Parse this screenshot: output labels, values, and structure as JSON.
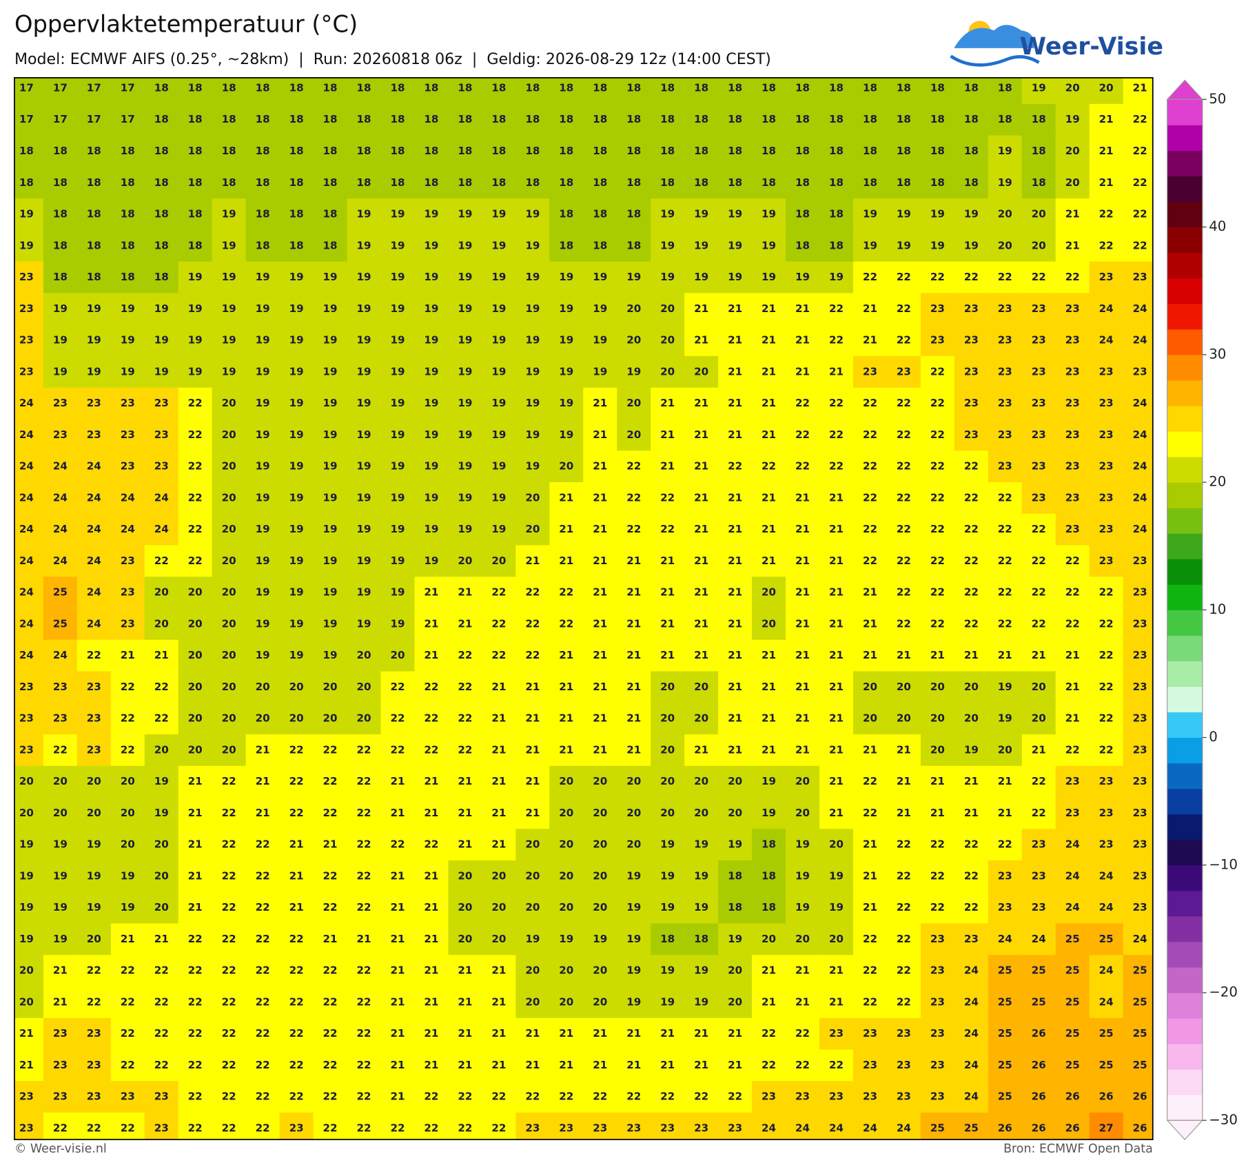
{
  "map": {
    "title": "Oppervlaktetemperatuur (°C)",
    "subtitle": "Model: ECMWF AIFS (0.25°, ~28km)  |  Run: 20260818 06z  |  Geldig: 2026-08-29 12z (14:00 CEST)",
    "logo": "Weer-Visie",
    "footer_left": "© Weer-visie.nl",
    "footer_right": "Bron: ECMWF Open Data",
    "values": [
      [
        17,
        17,
        17,
        17,
        18,
        18,
        18,
        18,
        18,
        18,
        18,
        18,
        18,
        18,
        18,
        18,
        18,
        18,
        18,
        18,
        18,
        18,
        18,
        18,
        18,
        18,
        18,
        18,
        18,
        18,
        19,
        20,
        20,
        21
      ],
      [
        17,
        17,
        17,
        17,
        18,
        18,
        18,
        18,
        18,
        18,
        18,
        18,
        18,
        18,
        18,
        18,
        18,
        18,
        18,
        18,
        18,
        18,
        18,
        18,
        18,
        18,
        18,
        18,
        18,
        18,
        18,
        19,
        21,
        22
      ],
      [
        18,
        18,
        18,
        18,
        18,
        18,
        18,
        18,
        18,
        18,
        18,
        18,
        18,
        18,
        18,
        18,
        18,
        18,
        18,
        18,
        18,
        18,
        18,
        18,
        18,
        18,
        18,
        18,
        18,
        19,
        18,
        20,
        21,
        22
      ],
      [
        18,
        18,
        18,
        18,
        18,
        18,
        18,
        18,
        18,
        18,
        18,
        18,
        18,
        18,
        18,
        18,
        18,
        18,
        18,
        18,
        18,
        18,
        18,
        18,
        18,
        18,
        18,
        18,
        18,
        19,
        18,
        20,
        21,
        22
      ],
      [
        19,
        18,
        18,
        18,
        18,
        18,
        19,
        18,
        18,
        18,
        19,
        19,
        19,
        19,
        19,
        19,
        18,
        18,
        18,
        19,
        19,
        19,
        19,
        18,
        18,
        19,
        19,
        19,
        19,
        20,
        20,
        21,
        22,
        22
      ],
      [
        19,
        18,
        18,
        18,
        18,
        18,
        19,
        18,
        18,
        18,
        19,
        19,
        19,
        19,
        19,
        19,
        18,
        18,
        18,
        19,
        19,
        19,
        19,
        18,
        18,
        19,
        19,
        19,
        19,
        20,
        20,
        21,
        22,
        22
      ],
      [
        23,
        18,
        18,
        18,
        18,
        19,
        19,
        19,
        19,
        19,
        19,
        19,
        19,
        19,
        19,
        19,
        19,
        19,
        19,
        19,
        19,
        19,
        19,
        19,
        19,
        22,
        22,
        22,
        22,
        22,
        22,
        22,
        23,
        23
      ],
      [
        23,
        19,
        19,
        19,
        19,
        19,
        19,
        19,
        19,
        19,
        19,
        19,
        19,
        19,
        19,
        19,
        19,
        19,
        20,
        20,
        21,
        21,
        21,
        21,
        22,
        21,
        22,
        23,
        23,
        23,
        23,
        23,
        24,
        24
      ],
      [
        23,
        19,
        19,
        19,
        19,
        19,
        19,
        19,
        19,
        19,
        19,
        19,
        19,
        19,
        19,
        19,
        19,
        19,
        20,
        20,
        21,
        21,
        21,
        21,
        22,
        21,
        22,
        23,
        23,
        23,
        23,
        23,
        24,
        24
      ],
      [
        23,
        19,
        19,
        19,
        19,
        19,
        19,
        19,
        19,
        19,
        19,
        19,
        19,
        19,
        19,
        19,
        19,
        19,
        19,
        20,
        20,
        21,
        21,
        21,
        21,
        23,
        23,
        22,
        23,
        23,
        23,
        23,
        23,
        23
      ],
      [
        24,
        23,
        23,
        23,
        23,
        22,
        20,
        19,
        19,
        19,
        19,
        19,
        19,
        19,
        19,
        19,
        19,
        21,
        20,
        21,
        21,
        21,
        21,
        22,
        22,
        22,
        22,
        22,
        23,
        23,
        23,
        23,
        23,
        24
      ],
      [
        24,
        23,
        23,
        23,
        23,
        22,
        20,
        19,
        19,
        19,
        19,
        19,
        19,
        19,
        19,
        19,
        19,
        21,
        20,
        21,
        21,
        21,
        21,
        22,
        22,
        22,
        22,
        22,
        23,
        23,
        23,
        23,
        23,
        24
      ],
      [
        24,
        24,
        24,
        23,
        23,
        22,
        20,
        19,
        19,
        19,
        19,
        19,
        19,
        19,
        19,
        19,
        20,
        21,
        22,
        21,
        21,
        22,
        22,
        22,
        22,
        22,
        22,
        22,
        22,
        23,
        23,
        23,
        23,
        24
      ],
      [
        24,
        24,
        24,
        24,
        24,
        22,
        20,
        19,
        19,
        19,
        19,
        19,
        19,
        19,
        19,
        20,
        21,
        21,
        22,
        22,
        21,
        21,
        21,
        21,
        21,
        22,
        22,
        22,
        22,
        22,
        23,
        23,
        23,
        24
      ],
      [
        24,
        24,
        24,
        24,
        24,
        22,
        20,
        19,
        19,
        19,
        19,
        19,
        19,
        19,
        19,
        20,
        21,
        21,
        22,
        22,
        21,
        21,
        21,
        21,
        21,
        22,
        22,
        22,
        22,
        22,
        22,
        23,
        23,
        24
      ],
      [
        24,
        24,
        24,
        23,
        22,
        22,
        20,
        19,
        19,
        19,
        19,
        19,
        19,
        20,
        20,
        21,
        21,
        21,
        21,
        21,
        21,
        21,
        21,
        21,
        21,
        22,
        22,
        22,
        22,
        22,
        22,
        22,
        23,
        23
      ],
      [
        24,
        25,
        24,
        23,
        20,
        20,
        20,
        19,
        19,
        19,
        19,
        19,
        21,
        21,
        22,
        22,
        22,
        21,
        21,
        21,
        21,
        21,
        20,
        21,
        21,
        21,
        22,
        22,
        22,
        22,
        22,
        22,
        22,
        23
      ],
      [
        24,
        25,
        24,
        23,
        20,
        20,
        20,
        19,
        19,
        19,
        19,
        19,
        21,
        21,
        22,
        22,
        22,
        21,
        21,
        21,
        21,
        21,
        20,
        21,
        21,
        21,
        22,
        22,
        22,
        22,
        22,
        22,
        22,
        23
      ],
      [
        24,
        24,
        22,
        21,
        21,
        20,
        20,
        19,
        19,
        19,
        20,
        20,
        21,
        22,
        22,
        22,
        21,
        21,
        21,
        21,
        21,
        21,
        21,
        21,
        21,
        21,
        21,
        21,
        21,
        21,
        21,
        21,
        22,
        23
      ],
      [
        23,
        23,
        23,
        22,
        22,
        20,
        20,
        20,
        20,
        20,
        20,
        22,
        22,
        22,
        21,
        21,
        21,
        21,
        21,
        20,
        20,
        21,
        21,
        21,
        21,
        20,
        20,
        20,
        20,
        19,
        20,
        21,
        22,
        23
      ],
      [
        23,
        23,
        23,
        22,
        22,
        20,
        20,
        20,
        20,
        20,
        20,
        22,
        22,
        22,
        21,
        21,
        21,
        21,
        21,
        20,
        20,
        21,
        21,
        21,
        21,
        20,
        20,
        20,
        20,
        19,
        20,
        21,
        22,
        23
      ],
      [
        23,
        22,
        23,
        22,
        20,
        20,
        20,
        21,
        22,
        22,
        22,
        22,
        22,
        22,
        21,
        21,
        21,
        21,
        21,
        20,
        21,
        21,
        21,
        21,
        21,
        21,
        21,
        20,
        19,
        20,
        21,
        22,
        22,
        23
      ],
      [
        20,
        20,
        20,
        20,
        19,
        21,
        22,
        21,
        22,
        22,
        22,
        21,
        21,
        21,
        21,
        21,
        20,
        20,
        20,
        20,
        20,
        20,
        19,
        20,
        21,
        22,
        21,
        21,
        21,
        21,
        22,
        23,
        23,
        23
      ],
      [
        20,
        20,
        20,
        20,
        19,
        21,
        22,
        21,
        22,
        22,
        22,
        21,
        21,
        21,
        21,
        21,
        20,
        20,
        20,
        20,
        20,
        20,
        19,
        20,
        21,
        22,
        21,
        21,
        21,
        21,
        22,
        23,
        23,
        23
      ],
      [
        19,
        19,
        19,
        20,
        20,
        21,
        22,
        22,
        21,
        21,
        22,
        22,
        22,
        21,
        21,
        20,
        20,
        20,
        20,
        19,
        19,
        19,
        18,
        19,
        20,
        21,
        22,
        22,
        22,
        22,
        23,
        24,
        23,
        23
      ],
      [
        19,
        19,
        19,
        19,
        20,
        21,
        22,
        22,
        21,
        22,
        22,
        21,
        21,
        20,
        20,
        20,
        20,
        20,
        19,
        19,
        19,
        18,
        18,
        19,
        19,
        21,
        22,
        22,
        22,
        23,
        23,
        24,
        24,
        23
      ],
      [
        19,
        19,
        19,
        19,
        20,
        21,
        22,
        22,
        21,
        22,
        22,
        21,
        21,
        20,
        20,
        20,
        20,
        20,
        19,
        19,
        19,
        18,
        18,
        19,
        19,
        21,
        22,
        22,
        22,
        23,
        23,
        24,
        24,
        23
      ],
      [
        19,
        19,
        20,
        21,
        21,
        22,
        22,
        22,
        22,
        21,
        21,
        21,
        21,
        20,
        20,
        19,
        19,
        19,
        19,
        18,
        18,
        19,
        20,
        20,
        20,
        22,
        22,
        23,
        23,
        24,
        24,
        25,
        25,
        24
      ],
      [
        20,
        21,
        22,
        22,
        22,
        22,
        22,
        22,
        22,
        22,
        22,
        21,
        21,
        21,
        21,
        20,
        20,
        20,
        19,
        19,
        19,
        20,
        21,
        21,
        21,
        22,
        22,
        23,
        24,
        25,
        25,
        25,
        24,
        25
      ],
      [
        20,
        21,
        22,
        22,
        22,
        22,
        22,
        22,
        22,
        22,
        22,
        21,
        21,
        21,
        21,
        20,
        20,
        20,
        19,
        19,
        19,
        20,
        21,
        21,
        21,
        22,
        22,
        23,
        24,
        25,
        25,
        25,
        24,
        25
      ],
      [
        21,
        23,
        23,
        22,
        22,
        22,
        22,
        22,
        22,
        22,
        22,
        21,
        21,
        21,
        21,
        21,
        21,
        21,
        21,
        21,
        21,
        21,
        22,
        22,
        23,
        23,
        23,
        23,
        24,
        25,
        26,
        25,
        25,
        25
      ],
      [
        21,
        23,
        23,
        22,
        22,
        22,
        22,
        22,
        22,
        22,
        22,
        21,
        21,
        21,
        21,
        21,
        21,
        21,
        21,
        21,
        21,
        21,
        22,
        22,
        22,
        23,
        23,
        23,
        24,
        25,
        26,
        25,
        25,
        25
      ],
      [
        23,
        23,
        23,
        23,
        23,
        22,
        22,
        22,
        22,
        22,
        22,
        21,
        22,
        22,
        22,
        22,
        22,
        22,
        22,
        22,
        22,
        22,
        23,
        23,
        23,
        23,
        23,
        23,
        24,
        25,
        26,
        26,
        26,
        26
      ],
      [
        23,
        22,
        22,
        22,
        23,
        22,
        22,
        22,
        23,
        22,
        22,
        22,
        22,
        22,
        22,
        23,
        23,
        23,
        23,
        23,
        23,
        23,
        24,
        24,
        24,
        24,
        24,
        25,
        25,
        26,
        26,
        26,
        27,
        26
      ]
    ],
    "colorbar": {
      "lim": [
        -30,
        50
      ],
      "ticks": [
        50,
        40,
        30,
        20,
        10,
        0,
        {
          "value": -10,
          "label": "−10"
        },
        {
          "value": -20,
          "label": "−20"
        },
        {
          "value": -30,
          "label": "−30"
        }
      ],
      "colors": [
        "#fdf0fb",
        "#fcd9f5",
        "#f8b8ee",
        "#f098e6",
        "#dc82db",
        "#c266c8",
        "#a54bb6",
        "#8430a4",
        "#5e1a94",
        "#3c0a78",
        "#1e0a52",
        "#0a1a6e",
        "#083fa0",
        "#0a68c0",
        "#0a9ee4",
        "#38c8f8",
        "#d4fae0",
        "#a8eca8",
        "#78da78",
        "#44c844",
        "#10b410",
        "#089008",
        "#3ca81a",
        "#78c010",
        "#a8cc00",
        "#ccdc00",
        "#ffff00",
        "#ffd800",
        "#ffb400",
        "#ff8c00",
        "#ff5a00",
        "#f01800",
        "#d80000",
        "#b00000",
        "#8a0000",
        "#600010",
        "#4a0030",
        "#7a0060",
        "#b000a8",
        "#e040d0"
      ]
    }
  }
}
